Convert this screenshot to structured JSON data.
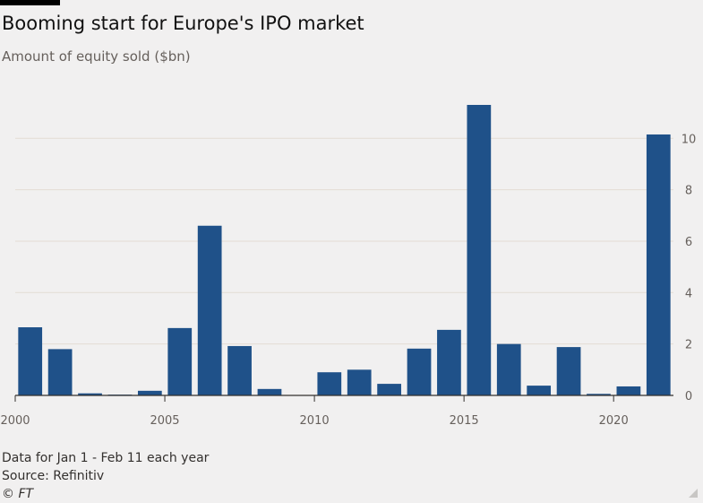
{
  "header": {
    "title": "Booming start for Europe's IPO market",
    "subtitle": "Amount of equity sold ($bn)"
  },
  "footer": {
    "note": "Data for Jan 1 - Feb 11 each year",
    "source": "Source: Refinitiv",
    "credit": "© FT"
  },
  "colors": {
    "bar": "#1f5189",
    "grid": "#e3dcd4",
    "axis": "#33302e"
  },
  "chart_data": {
    "type": "bar",
    "title": "Booming start for Europe's IPO market",
    "ylabel": "Amount of equity sold ($bn)",
    "xlabel": "",
    "categories": [
      2000,
      2001,
      2002,
      2003,
      2004,
      2005,
      2006,
      2007,
      2008,
      2009,
      2010,
      2011,
      2012,
      2013,
      2014,
      2015,
      2016,
      2017,
      2018,
      2019,
      2020,
      2021
    ],
    "values": [
      2.65,
      1.8,
      0.08,
      0.03,
      0.18,
      2.62,
      6.6,
      1.92,
      0.25,
      0.0,
      0.9,
      1.0,
      0.45,
      1.82,
      2.55,
      11.3,
      2.0,
      0.38,
      1.88,
      0.06,
      0.35,
      10.15
    ],
    "ylim": [
      0,
      11.3
    ],
    "yticks": [
      0,
      2,
      4,
      6,
      8,
      10
    ],
    "xticks": [
      2000,
      2005,
      2010,
      2015,
      2020
    ],
    "ytick_side": "right",
    "grid": true
  }
}
